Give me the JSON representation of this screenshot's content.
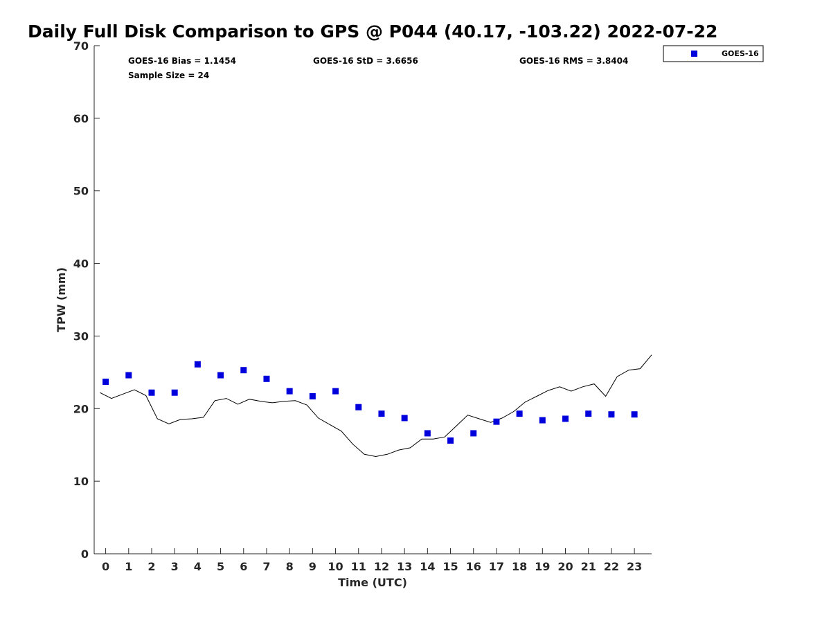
{
  "chart_data": {
    "type": "scatter",
    "title": "Daily Full Disk Comparison to GPS @ P044 (40.17, -103.22) 2022-07-22",
    "xlabel": "Time (UTC)",
    "ylabel": "TPW (mm)",
    "xlim": [
      -0.5,
      23.75
    ],
    "ylim": [
      0,
      70
    ],
    "x_ticks": [
      0,
      1,
      2,
      3,
      4,
      5,
      6,
      7,
      8,
      9,
      10,
      11,
      12,
      13,
      14,
      15,
      16,
      17,
      18,
      19,
      20,
      21,
      22,
      23
    ],
    "y_ticks": [
      0,
      10,
      20,
      30,
      40,
      50,
      60,
      70
    ],
    "grid": false,
    "legend_position": "top-right, outside plot",
    "stats": {
      "bias": "GOES-16 Bias = 1.1454",
      "std": "GOES-16 StD = 3.6656",
      "rms": "GOES-16 RMS = 3.8404",
      "sample_size": "Sample Size = 24"
    },
    "series": [
      {
        "name": "GOES-16",
        "kind": "scatter",
        "marker": "square",
        "color": "#0000dd",
        "x": [
          0,
          1,
          2,
          3,
          4,
          5,
          6,
          7,
          8,
          9,
          10,
          11,
          12,
          13,
          14,
          15,
          16,
          17,
          18,
          19,
          20,
          21,
          22,
          23
        ],
        "y": [
          23.7,
          24.6,
          22.2,
          22.2,
          26.1,
          24.6,
          25.3,
          24.1,
          22.4,
          21.7,
          22.4,
          20.2,
          19.3,
          18.7,
          16.6,
          15.6,
          16.6,
          18.2,
          19.3,
          18.4,
          18.6,
          19.3,
          19.2,
          19.2
        ]
      },
      {
        "kind": "line",
        "color": "#000000",
        "x": [
          -0.25,
          0.25,
          0.75,
          1.25,
          1.75,
          2.25,
          2.75,
          3.25,
          3.75,
          4.25,
          4.75,
          5.25,
          5.75,
          6.25,
          6.75,
          7.25,
          7.75,
          8.25,
          8.75,
          9.25,
          9.75,
          10.25,
          10.75,
          11.25,
          11.75,
          12.25,
          12.75,
          13.25,
          13.75,
          14.25,
          14.75,
          15.25,
          15.75,
          16.25,
          16.75,
          17.25,
          17.75,
          18.25,
          18.75,
          19.25,
          19.75,
          20.25,
          20.75,
          21.25,
          21.75,
          22.25,
          22.75,
          23.25,
          23.75
        ],
        "y": [
          22.2,
          21.4,
          22.0,
          22.6,
          21.8,
          18.6,
          17.9,
          18.5,
          18.6,
          18.8,
          21.1,
          21.4,
          20.6,
          21.3,
          21.0,
          20.8,
          21.0,
          21.1,
          20.5,
          18.7,
          17.8,
          16.9,
          15.1,
          13.7,
          13.4,
          13.7,
          14.3,
          14.6,
          15.8,
          15.8,
          16.1,
          17.6,
          19.1,
          18.6,
          18.1,
          18.7,
          19.6,
          20.9,
          21.7,
          22.5,
          23.0,
          22.4,
          23.0,
          23.4,
          21.7,
          24.4,
          25.3,
          25.5,
          27.4
        ]
      }
    ]
  }
}
